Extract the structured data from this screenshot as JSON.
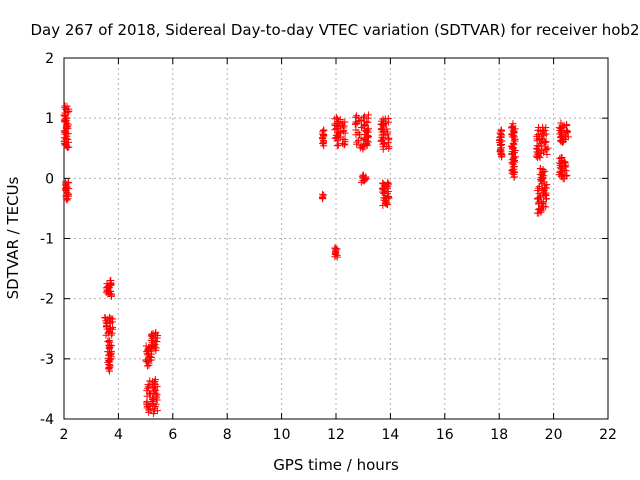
{
  "chart_data": {
    "type": "scatter",
    "title": "Day 267 of 2018, Sidereal Day-to-day VTEC variation (SDTVAR) for receiver hob2",
    "xlabel": "GPS time / hours",
    "ylabel": "SDTVAR / TECUs",
    "xlim": [
      2,
      22
    ],
    "ylim": [
      -4,
      2
    ],
    "xticks": [
      "2",
      "4",
      "6",
      "8",
      "10",
      "12",
      "14",
      "16",
      "18",
      "20",
      "22"
    ],
    "yticks": [
      "-4",
      "-3",
      "-2",
      "-1",
      "0",
      "1",
      "2"
    ],
    "grid": true,
    "marker": "+",
    "color": "#ff0000",
    "clusters": [
      {
        "x": [
          2.0,
          2.18
        ],
        "y": [
          0.5,
          1.2
        ]
      },
      {
        "x": [
          2.05,
          2.18
        ],
        "y": [
          -0.35,
          -0.05
        ]
      },
      {
        "x": [
          3.55,
          3.75
        ],
        "y": [
          -1.95,
          -1.7
        ]
      },
      {
        "x": [
          3.5,
          3.8
        ],
        "y": [
          -2.6,
          -2.3
        ]
      },
      {
        "x": [
          3.6,
          3.75
        ],
        "y": [
          -3.2,
          -2.7
        ]
      },
      {
        "x": [
          5.0,
          5.25
        ],
        "y": [
          -3.1,
          -2.8
        ]
      },
      {
        "x": [
          5.2,
          5.45
        ],
        "y": [
          -2.85,
          -2.55
        ]
      },
      {
        "x": [
          5.0,
          5.45
        ],
        "y": [
          -3.9,
          -3.35
        ]
      },
      {
        "x": [
          11.5,
          11.55
        ],
        "y": [
          0.55,
          0.8
        ]
      },
      {
        "x": [
          11.5,
          11.55
        ],
        "y": [
          -0.32,
          -0.28
        ]
      },
      {
        "x": [
          11.95,
          12.05
        ],
        "y": [
          -1.3,
          -1.15
        ]
      },
      {
        "x": [
          11.95,
          12.35
        ],
        "y": [
          0.55,
          1.0
        ]
      },
      {
        "x": [
          12.7,
          13.2
        ],
        "y": [
          0.5,
          1.05
        ]
      },
      {
        "x": [
          12.9,
          13.1
        ],
        "y": [
          -0.05,
          0.05
        ]
      },
      {
        "x": [
          13.65,
          13.95
        ],
        "y": [
          0.5,
          1.0
        ]
      },
      {
        "x": [
          13.7,
          13.95
        ],
        "y": [
          -0.45,
          -0.05
        ]
      },
      {
        "x": [
          18.0,
          18.1
        ],
        "y": [
          0.35,
          0.82
        ]
      },
      {
        "x": [
          18.45,
          18.6
        ],
        "y": [
          0.02,
          0.9
        ]
      },
      {
        "x": [
          19.35,
          19.8
        ],
        "y": [
          0.35,
          0.85
        ]
      },
      {
        "x": [
          19.4,
          19.75
        ],
        "y": [
          -0.58,
          -0.1
        ]
      },
      {
        "x": [
          19.5,
          19.7
        ],
        "y": [
          -0.05,
          0.15
        ]
      },
      {
        "x": [
          20.2,
          20.55
        ],
        "y": [
          0.6,
          0.9
        ]
      },
      {
        "x": [
          20.2,
          20.5
        ],
        "y": [
          0.0,
          0.35
        ]
      }
    ]
  }
}
